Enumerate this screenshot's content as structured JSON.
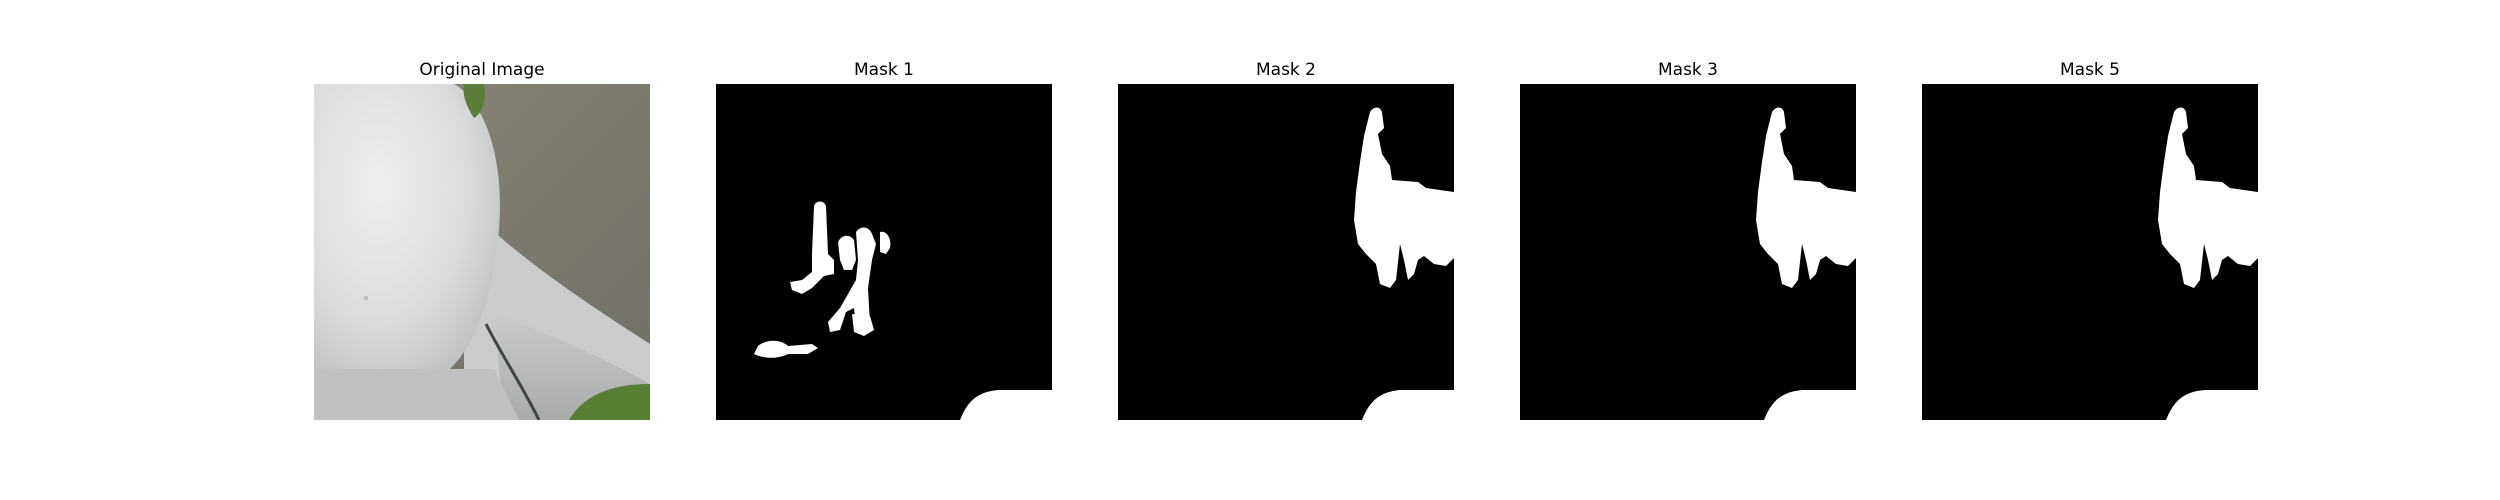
{
  "figure": {
    "panels": [
      {
        "title": "Original Image",
        "kind": "photo"
      },
      {
        "title": "Mask 1",
        "kind": "mask"
      },
      {
        "title": "Mask 2",
        "kind": "mask"
      },
      {
        "title": "Mask 3",
        "kind": "mask"
      },
      {
        "title": "Mask 5",
        "kind": "mask"
      }
    ]
  },
  "colors": {
    "mask_background": "#000000",
    "mask_foreground": "#ffffff",
    "page_background": "#ffffff"
  }
}
